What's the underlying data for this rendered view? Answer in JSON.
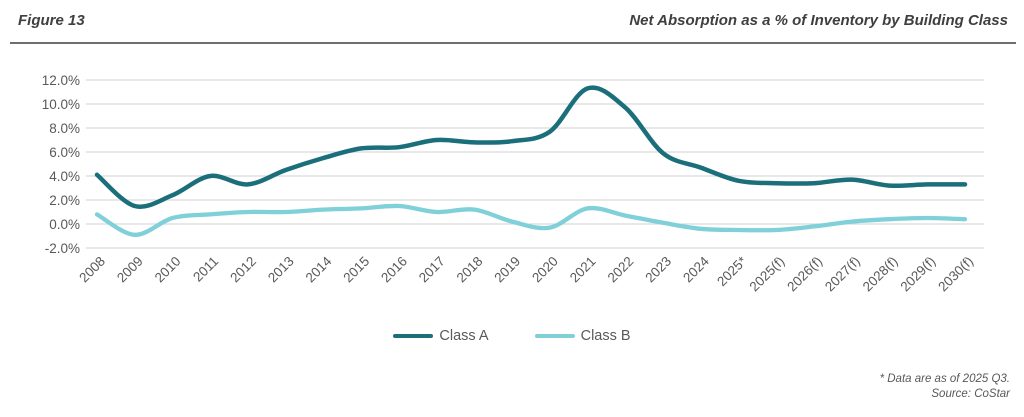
{
  "figure": {
    "label": "Figure 13",
    "title": "Net Absorption as a % of Inventory by Building Class"
  },
  "footnote": {
    "line1": "* Data are as of 2025 Q3.",
    "line2": "Source: CoStar"
  },
  "chart_data": {
    "type": "line",
    "title": "Net Absorption as a % of Inventory by Building Class",
    "categories": [
      "2008",
      "2009",
      "2010",
      "2011",
      "2012",
      "2013",
      "2014",
      "2015",
      "2016",
      "2017",
      "2018",
      "2019",
      "2020",
      "2021",
      "2022",
      "2023",
      "2024",
      "2025*",
      "2025(f)",
      "2026(f)",
      "2027(f)",
      "2028(f)",
      "2029(f)",
      "2030(f)"
    ],
    "series": [
      {
        "name": "Class A",
        "color": "#1B6F7B",
        "stroke_width": 4.5,
        "values": [
          4.1,
          1.5,
          2.4,
          4.0,
          3.3,
          4.5,
          5.5,
          6.3,
          6.4,
          7.0,
          6.8,
          6.9,
          7.7,
          11.3,
          9.7,
          5.9,
          4.7,
          3.6,
          3.4,
          3.4,
          3.7,
          3.2,
          3.3,
          3.3
        ]
      },
      {
        "name": "Class B",
        "color": "#7FD0D8",
        "stroke_width": 4.3,
        "values": [
          0.8,
          -0.9,
          0.5,
          0.8,
          1.0,
          1.0,
          1.2,
          1.3,
          1.5,
          1.0,
          1.2,
          0.2,
          -0.3,
          1.3,
          0.7,
          0.1,
          -0.4,
          -0.5,
          -0.5,
          -0.2,
          0.2,
          0.4,
          0.5,
          0.4
        ]
      }
    ],
    "ylim": [
      -2,
      12
    ],
    "ytick_step": 2,
    "ytick_labels": [
      "12.0%",
      "10.0%",
      "8.0%",
      "6.0%",
      "4.0%",
      "2.0%",
      "0.0%",
      "-2.0%"
    ],
    "xlabel": "",
    "ylabel": "",
    "grid": true,
    "smooth": true,
    "legend_position": "bottom",
    "x_label_rotation": -45
  },
  "style": {
    "grid_color": "#d9d9d9",
    "axis_label_color": "#595959",
    "header_text_color": "#3f3f3f"
  }
}
